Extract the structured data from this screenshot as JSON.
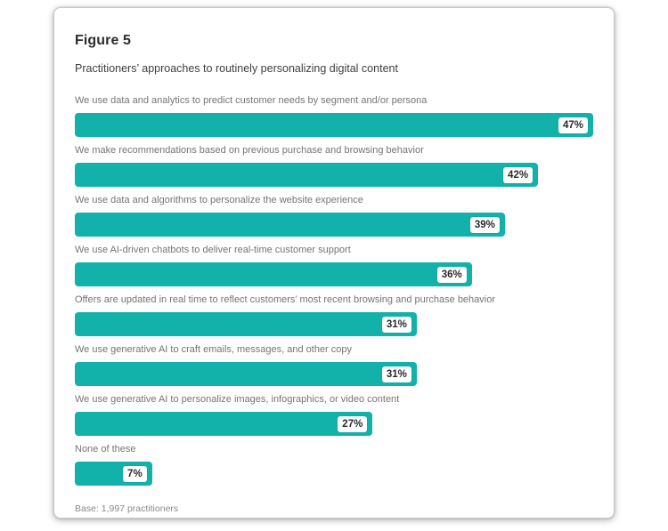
{
  "figure": {
    "title": "Figure 5",
    "subtitle": "Practitioners’ approaches to routinely personalizing digital content",
    "base_note": "Base: 1,997 practitioners"
  },
  "colors": {
    "bar_teal": "#12b2ab",
    "badge_background": "#ffffff",
    "badge_text": "#2b2b2b",
    "label_gray": "#757575"
  },
  "chart_data": {
    "type": "bar",
    "orientation": "horizontal",
    "title": "Figure 5",
    "subtitle": "Practitioners’ approaches to routinely personalizing digital content",
    "xlabel": "",
    "ylabel": "",
    "value_unit": "%",
    "xlim": [
      0,
      47
    ],
    "grid": false,
    "legend": false,
    "bars_scaled_to_max_value": true,
    "categories": [
      "We use data and analytics to predict customer needs by segment and/or persona",
      "We make recommendations based on previous purchase and browsing behavior",
      "We use data and algorithms to personalize the website experience",
      "We use AI-driven chatbots to deliver real-time customer support",
      "Offers are updated in real time to reflect customers’ most recent browsing and purchase behavior",
      "We use generative AI to craft emails, messages, and other copy",
      "We use generative AI to personalize images, infographics, or video content",
      "None of these"
    ],
    "values": [
      47,
      42,
      39,
      36,
      31,
      31,
      27,
      7
    ],
    "value_labels": [
      "47%",
      "42%",
      "39%",
      "36%",
      "31%",
      "31%",
      "27%",
      "7%"
    ],
    "base_note": "Base: 1,997 practitioners"
  }
}
